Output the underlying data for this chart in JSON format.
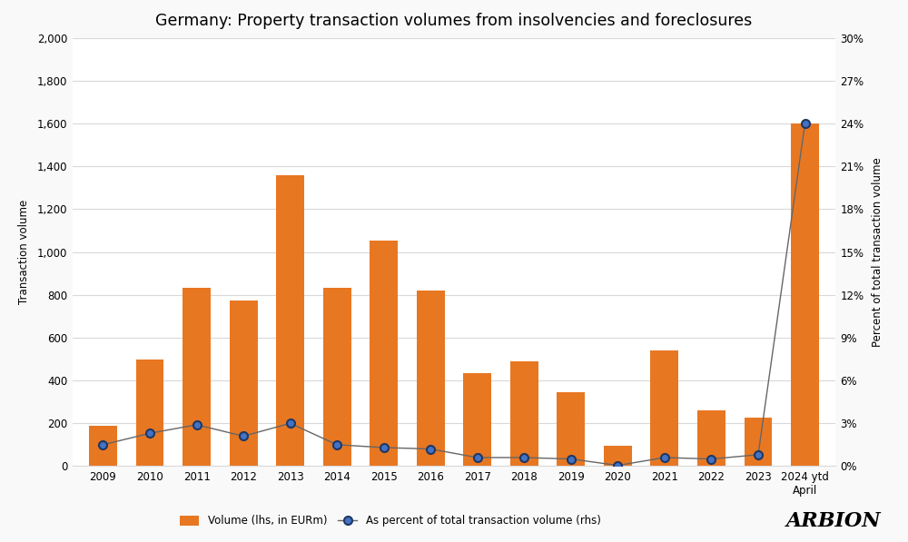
{
  "title": "Germany: Property transaction volumes from insolvencies and foreclosures",
  "categories": [
    "2009",
    "2010",
    "2011",
    "2012",
    "2013",
    "2014",
    "2015",
    "2016",
    "2017",
    "2018",
    "2019",
    "2020",
    "2021",
    "2022",
    "2023",
    "2024 ytd\nApril"
  ],
  "bar_values": [
    190,
    500,
    835,
    775,
    1360,
    835,
    1055,
    820,
    435,
    490,
    345,
    95,
    540,
    260,
    225,
    1600
  ],
  "line_values": [
    1.5,
    2.3,
    2.9,
    2.1,
    3.0,
    1.5,
    1.3,
    1.2,
    0.6,
    0.6,
    0.5,
    0.05,
    0.6,
    0.5,
    0.8,
    24.0
  ],
  "bar_color": "#E87722",
  "line_color": "#666666",
  "marker_face": "#4472C4",
  "marker_edge": "#1F3864",
  "background_color": "#F9F9F9",
  "plot_bg_color": "#FFFFFF",
  "grid_color": "#D9D9D9",
  "ylabel_left": "Transaction volume",
  "ylabel_right": "Percent of total transaction volume",
  "ylim_left": [
    0,
    2000
  ],
  "ylim_right": [
    0,
    30
  ],
  "yticks_left": [
    0,
    200,
    400,
    600,
    800,
    1000,
    1200,
    1400,
    1600,
    1800,
    2000
  ],
  "yticks_right": [
    0,
    3,
    6,
    9,
    12,
    15,
    18,
    21,
    24,
    27,
    30
  ],
  "legend_bar": "Volume (lhs, in EURm)",
  "legend_line": "As percent of total transaction volume (rhs)",
  "arbion_text": "ARBION",
  "title_fontsize": 12.5,
  "label_fontsize": 8.5,
  "tick_fontsize": 8.5,
  "arbion_fontsize": 16
}
